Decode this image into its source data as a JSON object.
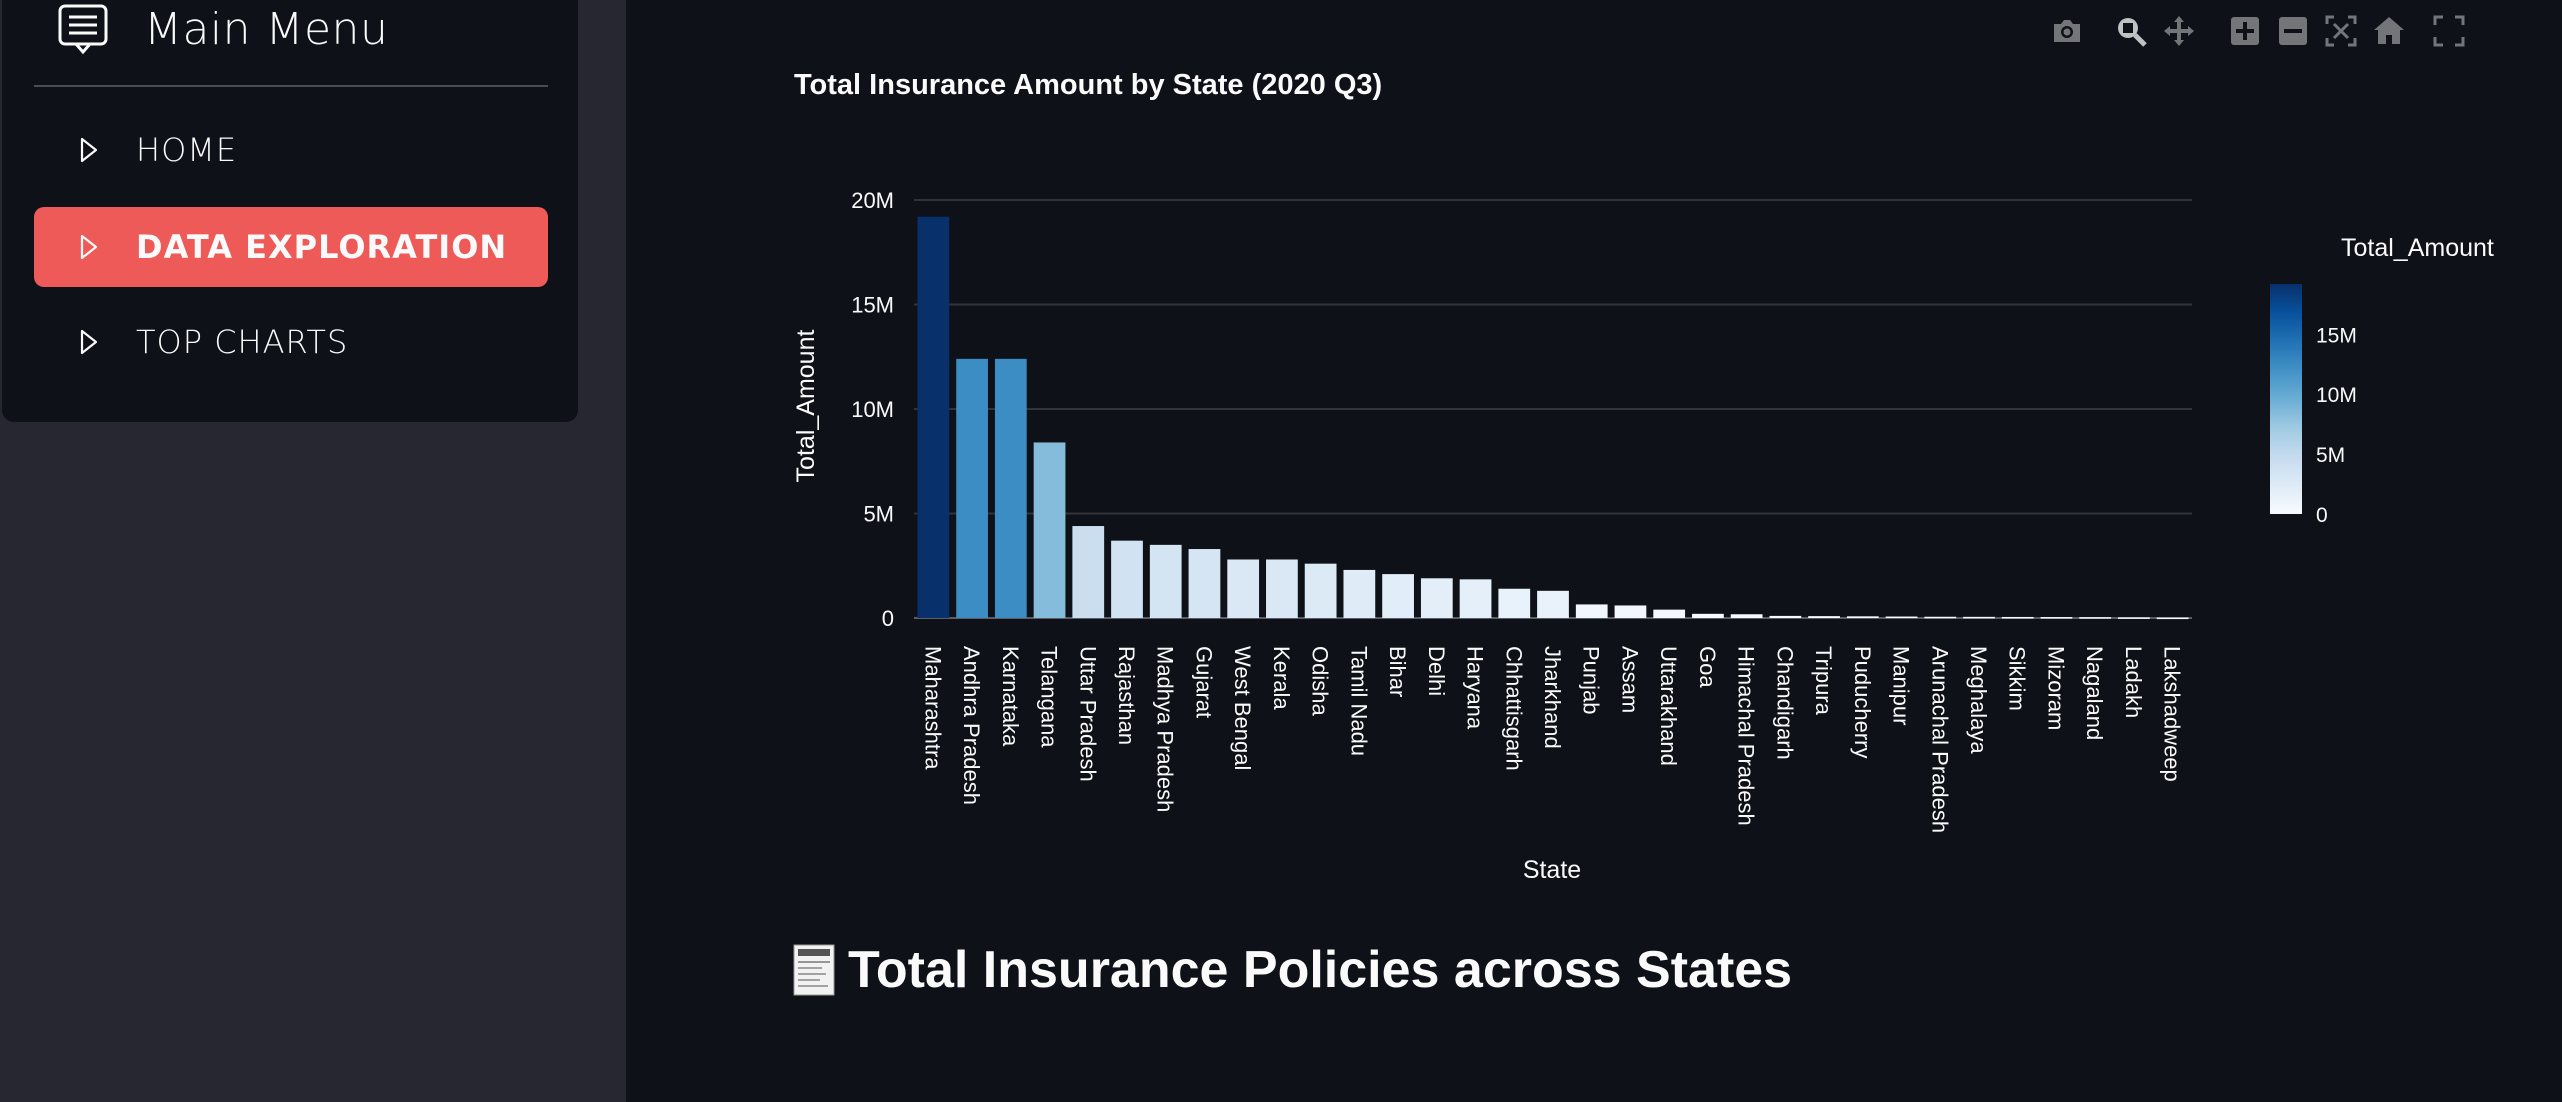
{
  "sidebar": {
    "title": "Main Menu",
    "menu_icon": "menu-list-icon",
    "items": [
      {
        "label": "HOME",
        "active": false,
        "icon": "caret-right-icon"
      },
      {
        "label": "DATA EXPLORATION",
        "active": true,
        "icon": "caret-right-icon"
      },
      {
        "label": "TOP CHARTS",
        "active": false,
        "icon": "caret-right-icon"
      }
    ]
  },
  "colors": {
    "active_item": "#ee5a57",
    "page_bg": "#0e1117",
    "sidebar_bg": "#262730",
    "scale_low": "#f7fbff",
    "scale_high": "#08306b"
  },
  "modebar": [
    "camera-icon",
    "zoom-icon",
    "pan-icon",
    "zoom-in-icon",
    "zoom-out-icon",
    "autoscale-icon",
    "reset-axes-icon",
    "fullscreen-icon"
  ],
  "chart_data": {
    "type": "bar",
    "title": "Total Insurance Amount by State (2020 Q3)",
    "xlabel": "State",
    "ylabel": "Total_Amount",
    "ylim": [
      0,
      20000000
    ],
    "yticks": [
      0,
      5000000,
      10000000,
      15000000,
      20000000
    ],
    "ytick_labels": [
      "0",
      "5M",
      "10M",
      "15M",
      "20M"
    ],
    "grid": true,
    "colorscale": "Blues",
    "colorbar": {
      "title": "Total_Amount",
      "range": [
        0,
        19200000
      ],
      "ticks": [
        0,
        5000000,
        10000000,
        15000000
      ],
      "tick_labels": [
        "0",
        "5M",
        "10M",
        "15M"
      ],
      "placement": "right"
    },
    "categories": [
      "Maharashtra",
      "Andhra Pradesh",
      "Karnataka",
      "Telangana",
      "Uttar Pradesh",
      "Rajasthan",
      "Madhya Pradesh",
      "Gujarat",
      "West Bengal",
      "Kerala",
      "Odisha",
      "Tamil Nadu",
      "Bihar",
      "Delhi",
      "Haryana",
      "Chhattisgarh",
      "Jharkhand",
      "Punjab",
      "Assam",
      "Uttarakhand",
      "Goa",
      "Himachal Pradesh",
      "Chandigarh",
      "Tripura",
      "Puducherry",
      "Manipur",
      "Arunachal Pradesh",
      "Meghalaya",
      "Sikkim",
      "Mizoram",
      "Nagaland",
      "Ladakh",
      "Lakshadweep"
    ],
    "values": [
      19200000,
      12400000,
      12400000,
      8400000,
      4400000,
      3700000,
      3500000,
      3300000,
      2800000,
      2800000,
      2600000,
      2300000,
      2100000,
      1900000,
      1850000,
      1400000,
      1300000,
      650000,
      600000,
      400000,
      200000,
      180000,
      100000,
      90000,
      80000,
      70000,
      60000,
      55000,
      50000,
      45000,
      40000,
      30000,
      20000
    ]
  },
  "section": {
    "icon": "receipt-icon",
    "title": "Total Insurance Policies across States"
  }
}
